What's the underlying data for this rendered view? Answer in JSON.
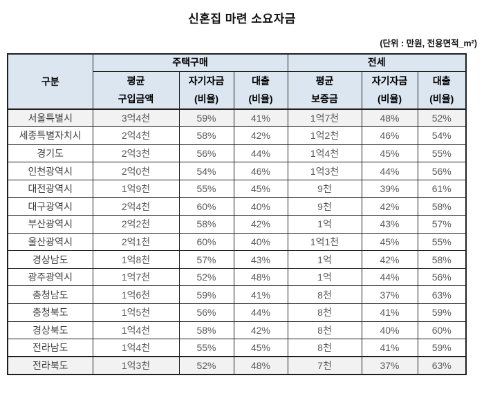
{
  "page": {
    "title": "신혼집 마련 소요자금",
    "unit_note": "(단위 : 만원, 전용면적_m²)"
  },
  "table": {
    "corner_header": "구분",
    "group_headers": [
      "주택구매",
      "전세"
    ],
    "sub_headers": [
      "평균\n구입금액",
      "자기자금\n(비율)",
      "대출\n(비율)",
      "평균\n보증금",
      "자기자금\n(비율)",
      "대출\n(비율)"
    ]
  },
  "colors": {
    "header_bg": "#dce6f1",
    "shaded_row_bg": "#f2f2f2",
    "border": "#1f1f1f",
    "region_text": "#3d3d3d",
    "value_text": "#595959"
  },
  "chart_data": {
    "type": "table",
    "title": "신혼집 마련 소요자금",
    "unit_note": "(단위 : 만원, 전용면적_m²)",
    "column_groups": [
      {
        "label": "구분",
        "span": 1
      },
      {
        "label": "주택구매",
        "span": 3
      },
      {
        "label": "전세",
        "span": 3
      }
    ],
    "columns": [
      "구분",
      "평균 구입금액",
      "자기자금 (비율)",
      "대출 (비율)",
      "평균 보증금",
      "자기자금 (비율)",
      "대출 (비율)"
    ],
    "rows": [
      [
        "서울특별시",
        "3억4천",
        "59%",
        "41%",
        "1억7천",
        "48%",
        "52%"
      ],
      [
        "세종특별자치시",
        "2억4천",
        "58%",
        "42%",
        "1억2천",
        "46%",
        "54%"
      ],
      [
        "경기도",
        "2억3천",
        "56%",
        "44%",
        "1억4천",
        "45%",
        "55%"
      ],
      [
        "인천광역시",
        "2억0천",
        "54%",
        "46%",
        "1억3천",
        "44%",
        "56%"
      ],
      [
        "대전광역시",
        "1억9천",
        "55%",
        "45%",
        "9천",
        "39%",
        "61%"
      ],
      [
        "대구광역시",
        "2억4천",
        "60%",
        "40%",
        "9천",
        "42%",
        "58%"
      ],
      [
        "부산광역시",
        "2억2천",
        "58%",
        "42%",
        "1억",
        "43%",
        "57%"
      ],
      [
        "울산광역시",
        "2억1천",
        "60%",
        "40%",
        "1억1천",
        "45%",
        "55%"
      ],
      [
        "경상남도",
        "1억8천",
        "57%",
        "43%",
        "1억",
        "42%",
        "58%"
      ],
      [
        "광주광역시",
        "1억7천",
        "52%",
        "48%",
        "1억",
        "44%",
        "56%"
      ],
      [
        "충청남도",
        "1억6천",
        "59%",
        "41%",
        "8천",
        "37%",
        "63%"
      ],
      [
        "충청북도",
        "1억5천",
        "56%",
        "44%",
        "8천",
        "41%",
        "59%"
      ],
      [
        "경상북도",
        "1억4천",
        "58%",
        "42%",
        "8천",
        "40%",
        "60%"
      ],
      [
        "전라남도",
        "1억4천",
        "55%",
        "45%",
        "8천",
        "41%",
        "59%"
      ],
      [
        "전라북도",
        "1억3천",
        "52%",
        "48%",
        "7천",
        "37%",
        "63%"
      ]
    ],
    "shaded_row_indices": [
      0,
      14
    ]
  }
}
